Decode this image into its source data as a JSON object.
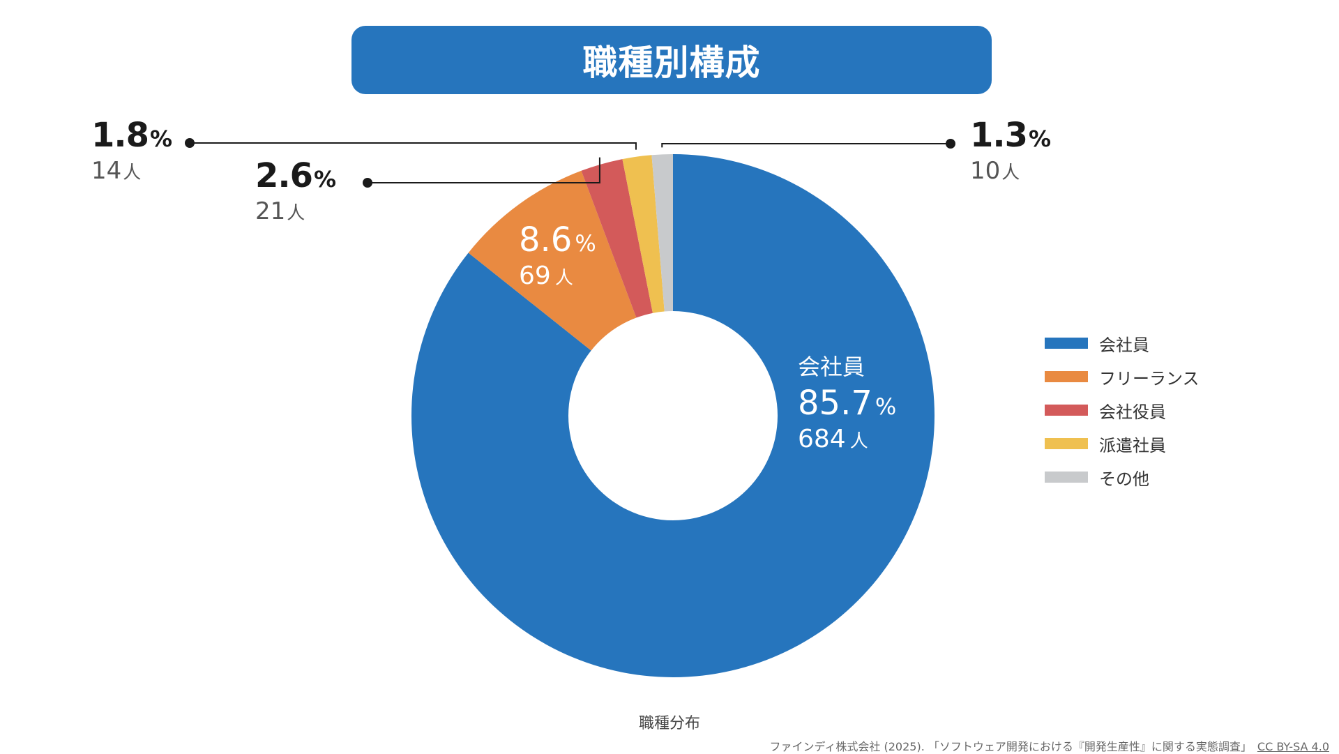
{
  "title": "職種別構成",
  "chart_caption": "職種分布",
  "source": {
    "text": "ファインディ株式会社 (2025). 「ソフトウェア開発における『開発生産性』に関する実態調査」",
    "license": "CC BY-SA 4.0"
  },
  "colors": {
    "title_bg": "#2675BD",
    "leader": "#1a1a1a"
  },
  "chart_data": {
    "type": "pie",
    "donut": true,
    "categories": [
      "会社員",
      "フリーランス",
      "会社役員",
      "派遣社員",
      "その他"
    ],
    "values": [
      85.7,
      8.6,
      2.6,
      1.8,
      1.3
    ],
    "percent_labels": [
      "85.7",
      "8.6",
      "2.6",
      "1.8",
      "1.3"
    ],
    "percent_unit": "%",
    "counts": [
      "684",
      "69",
      "21",
      "14",
      "10"
    ],
    "count_unit": "人",
    "colors": [
      "#2675BD",
      "#E98A41",
      "#D35A5A",
      "#EFC050",
      "#C8CACC"
    ],
    "start_angle_deg": 0,
    "direction": "clockwise",
    "legend_position": "right",
    "title": "職種別構成",
    "xlabel": "職種分布"
  }
}
